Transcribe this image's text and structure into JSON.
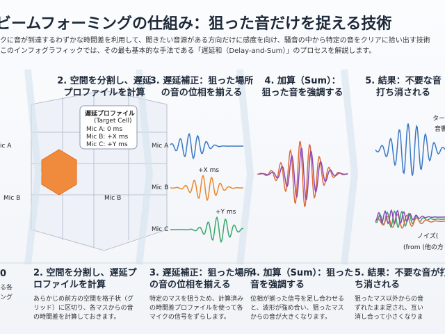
{
  "header": {
    "title": "ビームフォーミングの仕組み：狙った音だけを捉える技術",
    "intro": [
      "クに音が到達するわずかな時間差を利用して、聞きたい音源がある方向だけに感度を向け、騒音の中から特定の音をクリアに拾い出す技術",
      "このインフォグラフィックでは、その最も基本的な手法である「遅延和（Delay-and-Sum）」のプロセスを解説します。"
    ]
  },
  "panels": [
    {
      "heading": [
        "2. 空間を分割し、遅延",
        "プロファイルを計算"
      ]
    },
    {
      "heading": [
        "3. 遅延補正：狙った場所",
        "の音の位相を揃える"
      ]
    },
    {
      "heading": [
        "4. 加算（Sum）：",
        "狙った音を強調する"
      ]
    },
    {
      "heading": [
        "5. 結果：不要な音",
        "打ち消される"
      ]
    }
  ],
  "grid_panel": {
    "mic_labels": [
      "ic A",
      "Mic B",
      "Mic B"
    ],
    "callout": {
      "title": "遅延プロファイル",
      "subtitle": "(Target Cell)",
      "rows": [
        "Mic A: 0 ms",
        "Mic B: +X ms",
        "Mic C: +Y ms"
      ]
    }
  },
  "delay_panel": {
    "mics": [
      "Mic A",
      "Mic B",
      "Mic C"
    ],
    "shifts": [
      "+X ms",
      "+Y ms"
    ]
  },
  "result_panel": {
    "labels": [
      "ター",
      "音響",
      "ノイズ(",
      "(from (他の方"
    ]
  },
  "left_fragments": [
    "0",
    "る各",
    "ング"
  ],
  "captions": [
    {
      "heading": [
        "2. 空間を分割し、遅延プ",
        "ロファイルを計算"
      ],
      "body": [
        "あらかじめ前方の空間を格子状（グ",
        "リッド）に区切り、各マスからの音",
        "の時間差を計算しておきます。"
      ]
    },
    {
      "heading": [
        "3. 遅延補正：狙った場所",
        "の音の位相を揃える"
      ],
      "body": [
        "特定のマスを狙うため、計算済み",
        "の時間差プロファイルを使って各",
        "マイクの信号をずらします。"
      ]
    },
    {
      "heading": [
        "4. 加算（Sum）：狙った",
        "音を強調する"
      ],
      "body": [
        "位相が揃った信号を足し合わせる",
        "と、波形が強め合い、狙ったマス",
        "からの音が大きくなります。"
      ]
    },
    {
      "heading": [
        "5. 結果：不要な音が打",
        "ち消される"
      ],
      "body": [
        "狙ったマス以外からの音",
        "ずれたまま足され、互い",
        "消し合って小さくなりま"
      ]
    }
  ]
}
